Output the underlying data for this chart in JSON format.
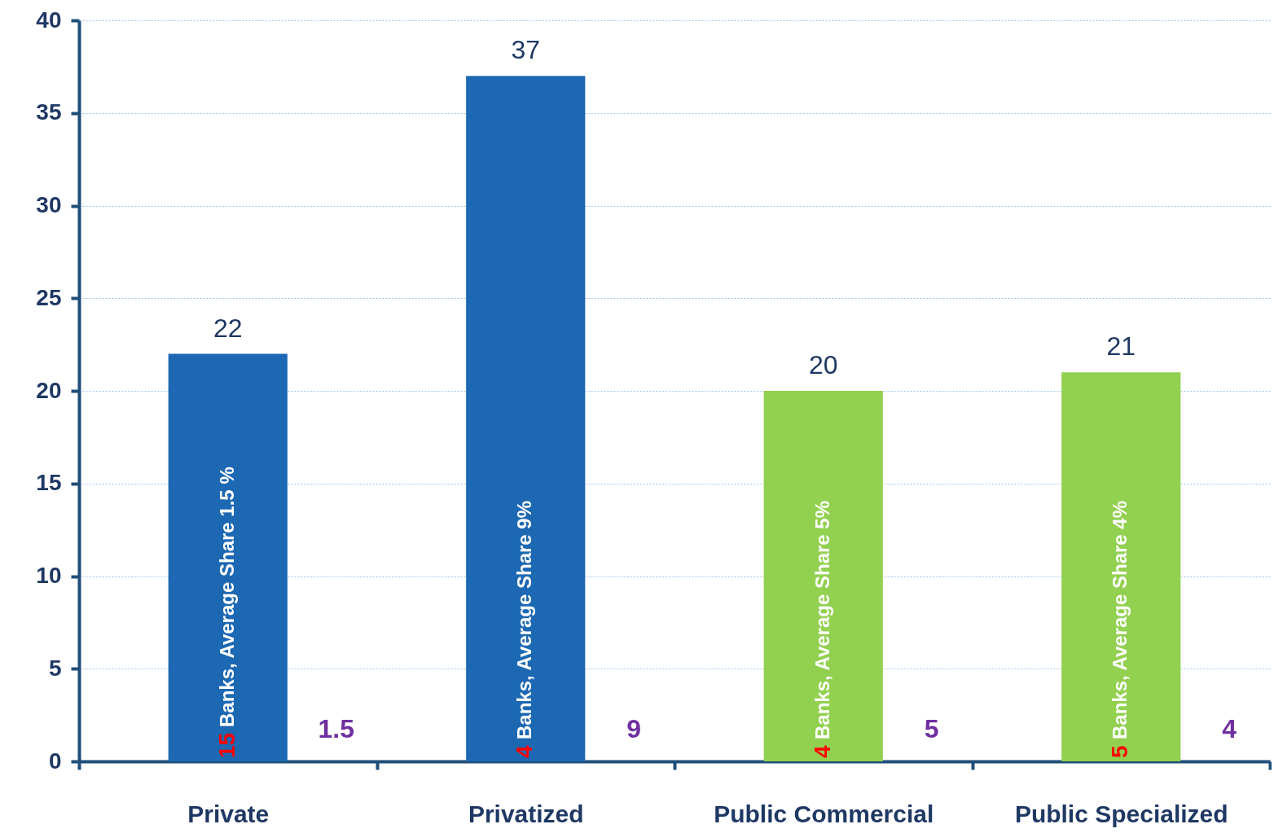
{
  "chart_data": {
    "type": "bar",
    "categories": [
      "Private",
      "Privatized",
      "Public Commercial",
      "Public Specialized"
    ],
    "values": [
      22,
      37,
      20,
      21
    ],
    "colors": [
      "#1c68b3",
      "#1c68b3",
      "#92d050",
      "#92d050"
    ],
    "data_labels": true,
    "ylim": [
      0,
      40
    ],
    "yticks": [
      0,
      5,
      10,
      15,
      20,
      25,
      30,
      35,
      40
    ],
    "grid": "y",
    "annotations": [
      "15",
      "Banks, Average Share 1.5 %",
      "1.5",
      "4",
      "Banks, Average Share 9%",
      "9",
      "4",
      "Banks, Average Share 5%",
      "5",
      "5",
      "Banks, Average Share 4%",
      "4"
    ]
  }
}
